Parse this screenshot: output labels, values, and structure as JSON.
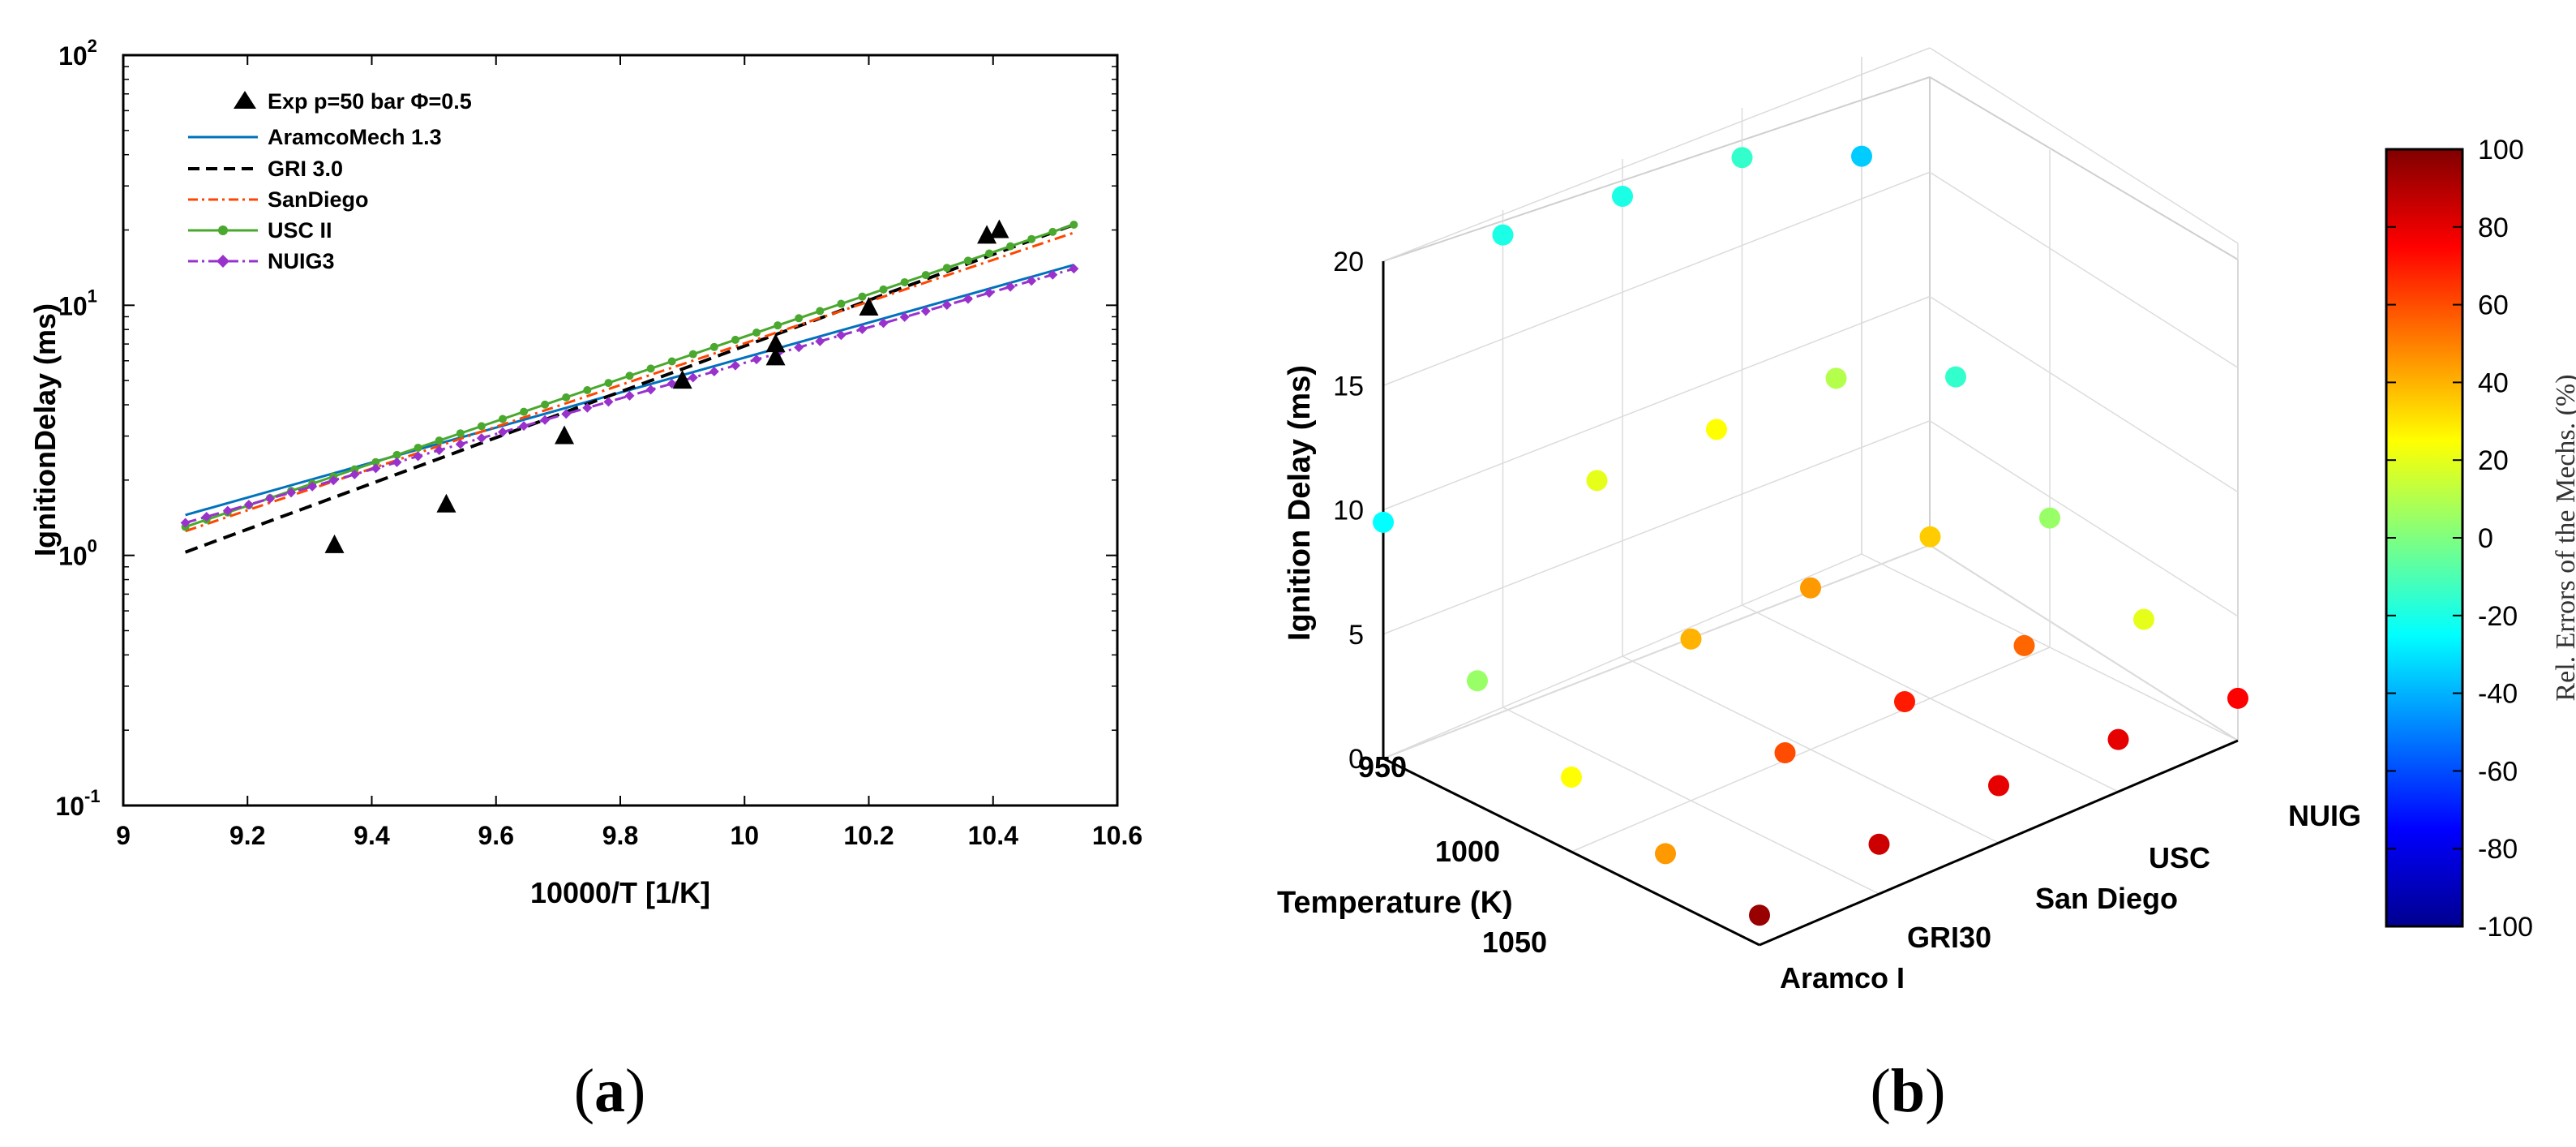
{
  "panels": {
    "a_label_open": "(",
    "a_label_letter": "a",
    "a_label_close": ")",
    "b_label_open": "(",
    "b_label_letter": "b",
    "b_label_close": ")"
  },
  "chart_data": [
    {
      "id": "a",
      "type": "line",
      "xlabel": "10000/T [1/K]",
      "ylabel": "IgnitionDelay (ms)",
      "xlim": [
        9,
        10.6
      ],
      "ylim": [
        0.1,
        100
      ],
      "yscale": "log",
      "xticks": [
        "9",
        "9.2",
        "9.4",
        "9.6",
        "9.8",
        "10",
        "10.2",
        "10.4",
        "10.6"
      ],
      "yticks": [
        {
          "base": "10",
          "exp": "-1"
        },
        {
          "base": "10",
          "exp": "0"
        },
        {
          "base": "10",
          "exp": "1"
        },
        {
          "base": "10",
          "exp": "2"
        }
      ],
      "legend_position": "top-left",
      "experimental": {
        "label": "Exp p=50 bar  Φ=0.5",
        "x": [
          9.34,
          9.52,
          9.71,
          9.9,
          10.05,
          10.05,
          10.2,
          10.39,
          10.41
        ],
        "y": [
          1.1,
          1.6,
          3.0,
          5.0,
          6.2,
          7.0,
          9.8,
          19,
          20
        ]
      },
      "series": [
        {
          "name": "AramcoMech 1.3",
          "style": "solid",
          "color": "#0072bd",
          "x": [
            9.1,
            10.53
          ],
          "y": [
            1.45,
            14.5
          ]
        },
        {
          "name": "GRI 3.0",
          "style": "dashed",
          "color": "#000000",
          "x": [
            9.1,
            10.53
          ],
          "y": [
            1.03,
            21
          ]
        },
        {
          "name": "SanDiego",
          "style": "dashdot",
          "color": "#ff4500",
          "x": [
            9.1,
            10.53
          ],
          "y": [
            1.25,
            19.5
          ]
        },
        {
          "name": "USC II",
          "style": "solid-marker",
          "color": "#4aa82e",
          "x": [
            9.1,
            10.53
          ],
          "y": [
            1.3,
            21
          ]
        },
        {
          "name": "NUIG3",
          "style": "dashdot-marker",
          "color": "#9932cc",
          "x": [
            9.1,
            10.53
          ],
          "y": [
            1.35,
            14
          ]
        }
      ]
    },
    {
      "id": "b",
      "type": "scatter3d",
      "zlabel": "Ignition Delay (ms)",
      "ylabel": "Temperature (K)",
      "colorbar_label": "Rel. Errors of the Mechs. (%)",
      "zticks": [
        "0",
        "5",
        "10",
        "15",
        "20"
      ],
      "temperature_ticks": [
        "950",
        "1000",
        "1050"
      ],
      "temperatures": [
        950,
        975,
        1000,
        1025,
        1050
      ],
      "mechanisms": [
        "Aramco I",
        "GRI30",
        "San Diego",
        "USC",
        "NUIG"
      ],
      "colorbar_ticks": [
        "100",
        "80",
        "60",
        "40",
        "20",
        "0",
        "-20",
        "-40",
        "-60",
        "-80",
        "-100"
      ],
      "clim": [
        -100,
        100
      ],
      "delays_ms": [
        [
          9.5,
          5.0,
          3.0,
          1.8,
          1.2
        ],
        [
          19.0,
          11.0,
          6.5,
          3.8,
          2.0
        ],
        [
          18.5,
          11.0,
          6.5,
          3.8,
          2.3
        ],
        [
          18.0,
          11.0,
          6.5,
          4.0,
          2.1
        ],
        [
          16.0,
          9.0,
          5.2,
          3.0,
          1.7
        ]
      ],
      "errors_pct": [
        [
          -25,
          5,
          25,
          45,
          95
        ],
        [
          -20,
          20,
          40,
          60,
          85
        ],
        [
          -20,
          25,
          45,
          70,
          80
        ],
        [
          -15,
          10,
          35,
          55,
          80
        ],
        [
          -35,
          -15,
          5,
          20,
          75
        ]
      ]
    }
  ]
}
